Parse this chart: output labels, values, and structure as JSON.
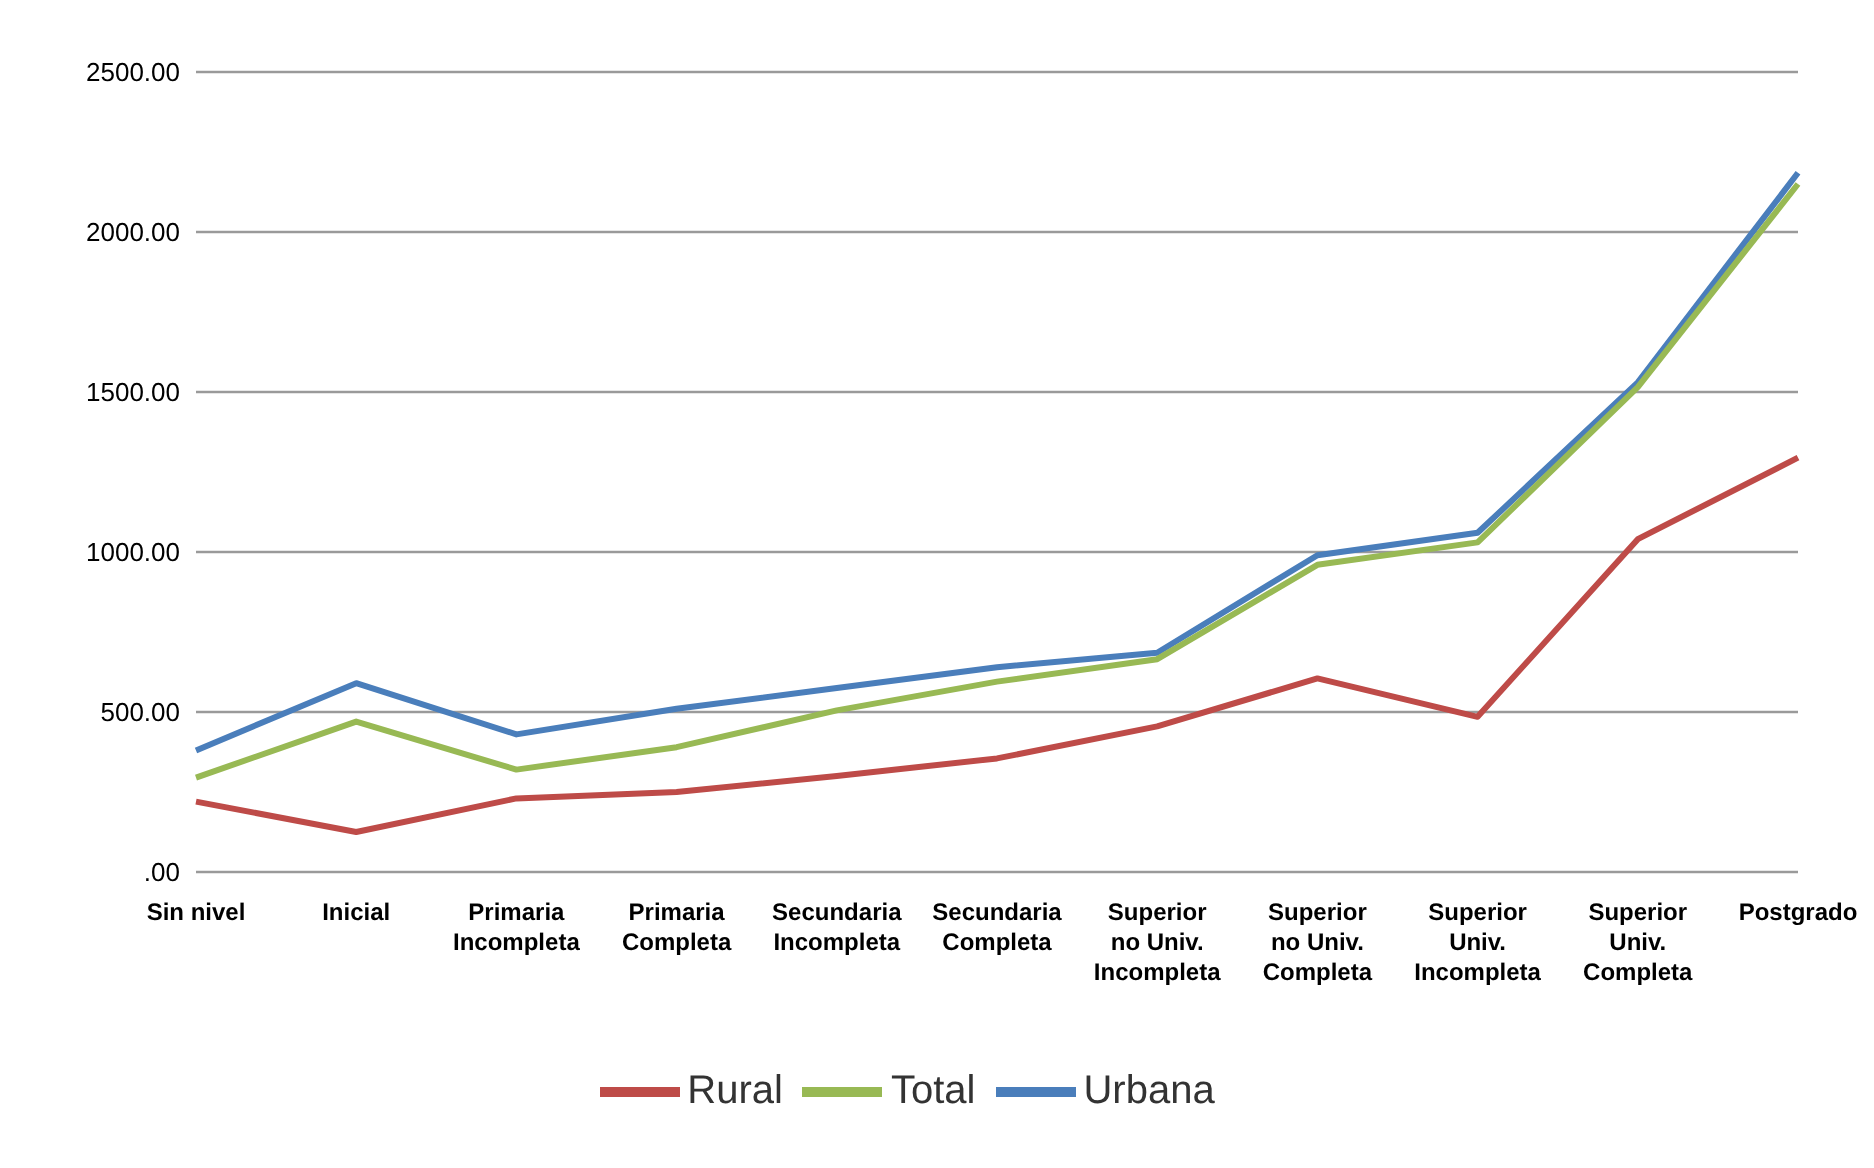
{
  "chart_data": {
    "type": "line",
    "categories": [
      "Sin nivel",
      "Inicial",
      "Primaria Incompleta",
      "Primaria Completa",
      "Secundaria Incompleta",
      "Secundaria Completa",
      "Superior no Univ. Incompleta",
      "Superior no Univ. Completa",
      "Superior Univ. Incompleta",
      "Superior Univ. Completa",
      "Postgrado"
    ],
    "series": [
      {
        "name": "Urbana",
        "color": "#4a7ebb",
        "values": [
          380,
          590,
          430,
          510,
          575,
          640,
          685,
          990,
          1060,
          1530,
          2185
        ]
      },
      {
        "name": "Rural",
        "color": "#be4b48",
        "values": [
          220,
          125,
          230,
          250,
          300,
          355,
          455,
          605,
          485,
          1040,
          1295
        ]
      },
      {
        "name": "Total",
        "color": "#98b954",
        "values": [
          295,
          470,
          320,
          390,
          505,
          595,
          665,
          960,
          1030,
          1515,
          2150
        ]
      }
    ],
    "ylim": [
      0,
      2500
    ],
    "yticks": [
      {
        "value": 0,
        "label": ".00"
      },
      {
        "value": 500,
        "label": "500.00"
      },
      {
        "value": 1000,
        "label": "1000.00"
      },
      {
        "value": 1500,
        "label": "1500.00"
      },
      {
        "value": 2000,
        "label": "2000.00"
      },
      {
        "value": 2500,
        "label": "2500.00"
      }
    ],
    "grid": "y",
    "legend": "bottom",
    "marker": "none",
    "line_style": "solid"
  }
}
